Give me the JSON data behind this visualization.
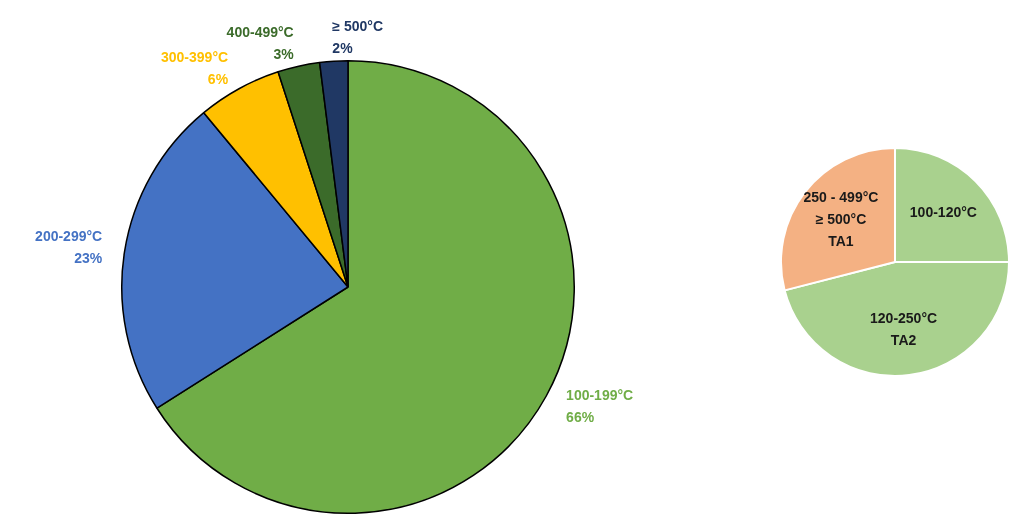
{
  "chart_data": [
    {
      "type": "pie",
      "categories": [
        "100-199°C",
        "200-299°C",
        "300-399°C",
        "400-499°C",
        "≥ 500°C"
      ],
      "values": [
        66,
        23,
        6,
        3,
        2
      ],
      "value_labels": [
        "66%",
        "23%",
        "6%",
        "3%",
        "2%"
      ],
      "colors": [
        "#70ad47",
        "#4472c4",
        "#ffc000",
        "#3b6b2a",
        "#203864"
      ],
      "legend": false
    },
    {
      "type": "pie",
      "categories": [
        "100-120°C",
        "120-250°C\nTA2",
        "250 - 499°C\n≥ 500°C\nTA1"
      ],
      "values": [
        25,
        46,
        29
      ],
      "colors": [
        "#a9d18e",
        "#a9d18e",
        "#f4b183"
      ],
      "legend": false
    }
  ]
}
